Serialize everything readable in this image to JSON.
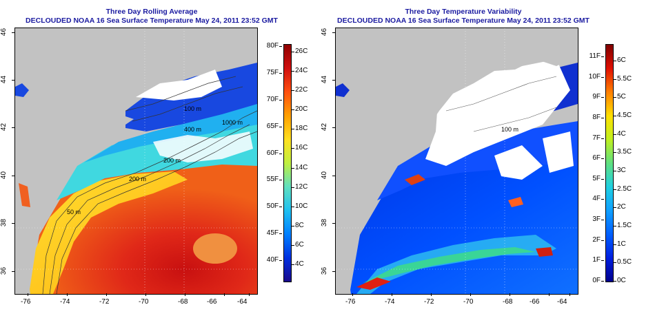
{
  "left_panel": {
    "title_line1": "Three Day Rolling Average",
    "title_line2": "DECLOUDED NOAA 16 Sea Surface Temperature May 24, 2011 23:52 GMT",
    "x_ticks": [
      "-76",
      "-74",
      "-72",
      "-70",
      "-68",
      "-66",
      "-64"
    ],
    "y_ticks": [
      "36",
      "38",
      "40",
      "42",
      "44",
      "46"
    ],
    "colorbar_left_labels": [
      "80F",
      "75F",
      "70F",
      "65F",
      "60F",
      "55F",
      "50F",
      "45F",
      "40F"
    ],
    "colorbar_right_labels": [
      "26C",
      "24C",
      "22C",
      "20C",
      "18C",
      "16C",
      "14C",
      "12C",
      "10C",
      "8C",
      "6C",
      "4C"
    ],
    "contour_labels": [
      "100 m",
      "200 m",
      "1000 m",
      "50 m",
      "400 m",
      "200 m"
    ],
    "colormap": [
      "#1a0a8c",
      "#0030e0",
      "#0080ff",
      "#20c0f0",
      "#60e0c0",
      "#c0f040",
      "#ffe020",
      "#ffa000",
      "#ff5010",
      "#d01010",
      "#900000"
    ]
  },
  "right_panel": {
    "title_line1": "Three Day Temperature Variability",
    "title_line2": "DECLOUDED NOAA 16 Sea Surface Temperature May 24, 2011 23:52 GMT",
    "x_ticks": [
      "-76",
      "-74",
      "-72",
      "-70",
      "-68",
      "-66",
      "-64"
    ],
    "y_ticks": [
      "36",
      "38",
      "40",
      "42",
      "44",
      "46"
    ],
    "colorbar_left_labels": [
      "11F",
      "10F",
      "9F",
      "8F",
      "7F",
      "6F",
      "5F",
      "4F",
      "3F",
      "2F",
      "1F",
      "0F"
    ],
    "colorbar_right_labels": [
      "6C",
      "5.5C",
      "5C",
      "4.5C",
      "4C",
      "3.5C",
      "3C",
      "2.5C",
      "2C",
      "1.5C",
      "1C",
      "0.5C",
      "0C"
    ],
    "contour_labels": [
      "100 m"
    ],
    "colormap": [
      "#00008c",
      "#0020e0",
      "#0060ff",
      "#10a0ff",
      "#20d0e0",
      "#60e080",
      "#c0f020",
      "#ffe000",
      "#ff8000",
      "#e01000",
      "#800000"
    ]
  },
  "colors": {
    "land": "#c2c2c2",
    "title": "#1a1aa0",
    "cloud": "#ffffff"
  }
}
